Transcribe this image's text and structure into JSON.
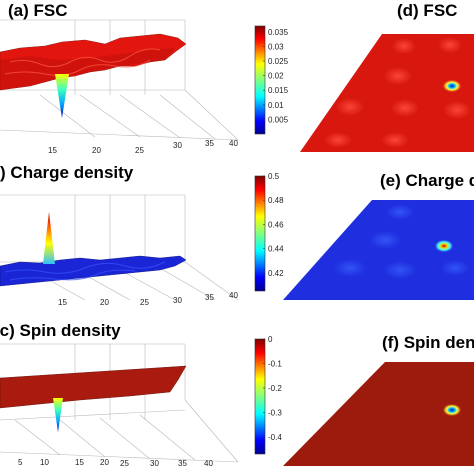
{
  "chart_data": [
    {
      "type": "surface3d",
      "title": "(a) FSC",
      "x_ticks": [
        "15",
        "20",
        "25",
        "30",
        "35",
        "40"
      ],
      "surface_color": "#e3160f",
      "feature": "flat surface with a single sharp downward dip"
    },
    {
      "type": "surface3d",
      "title": "(b) Charge density",
      "x_ticks": [
        "15",
        "20",
        "25",
        "30",
        "35",
        "40"
      ],
      "surface_color": "#1a25d6",
      "feature": "flat surface with a single sharp upward peak"
    },
    {
      "type": "surface3d",
      "title": "(c) Spin density",
      "x_ticks": [
        "5",
        "10",
        "15",
        "20",
        "25",
        "30",
        "35",
        "40"
      ],
      "surface_color": "#a81b0e",
      "feature": "flat surface with a single sharp downward dip"
    },
    {
      "type": "heatmap",
      "title": "(d) FSC",
      "colorbar": {
        "min": 0.0,
        "max": 0.037,
        "ticks": [
          "0.035",
          "0.03",
          "0.025",
          "0.02",
          "0.015",
          "0.01",
          "0.005"
        ],
        "tick_values": [
          0.035,
          0.03,
          0.025,
          0.02,
          0.015,
          0.01,
          0.005
        ]
      },
      "background_color": "#d8180e",
      "spot_color": "#1c4be0"
    },
    {
      "type": "heatmap",
      "title": "(e) Charge density",
      "colorbar": {
        "min": 0.405,
        "max": 0.5,
        "ticks": [
          "0.5",
          "0.48",
          "0.46",
          "0.44",
          "0.42"
        ],
        "tick_values": [
          0.5,
          0.48,
          0.46,
          0.44,
          0.42
        ]
      },
      "background_color": "#1f2fe0",
      "spot_color": "#d42b10"
    },
    {
      "type": "heatmap",
      "title": "(f) Spin density",
      "colorbar": {
        "min": -0.47,
        "max": 0.0,
        "ticks": [
          "0",
          "-0.1",
          "-0.2",
          "-0.3",
          "-0.4"
        ],
        "tick_values": [
          0,
          -0.1,
          -0.2,
          -0.3,
          -0.4
        ]
      },
      "background_color": "#9c1b0c",
      "spot_color": "#1c4be0"
    }
  ]
}
